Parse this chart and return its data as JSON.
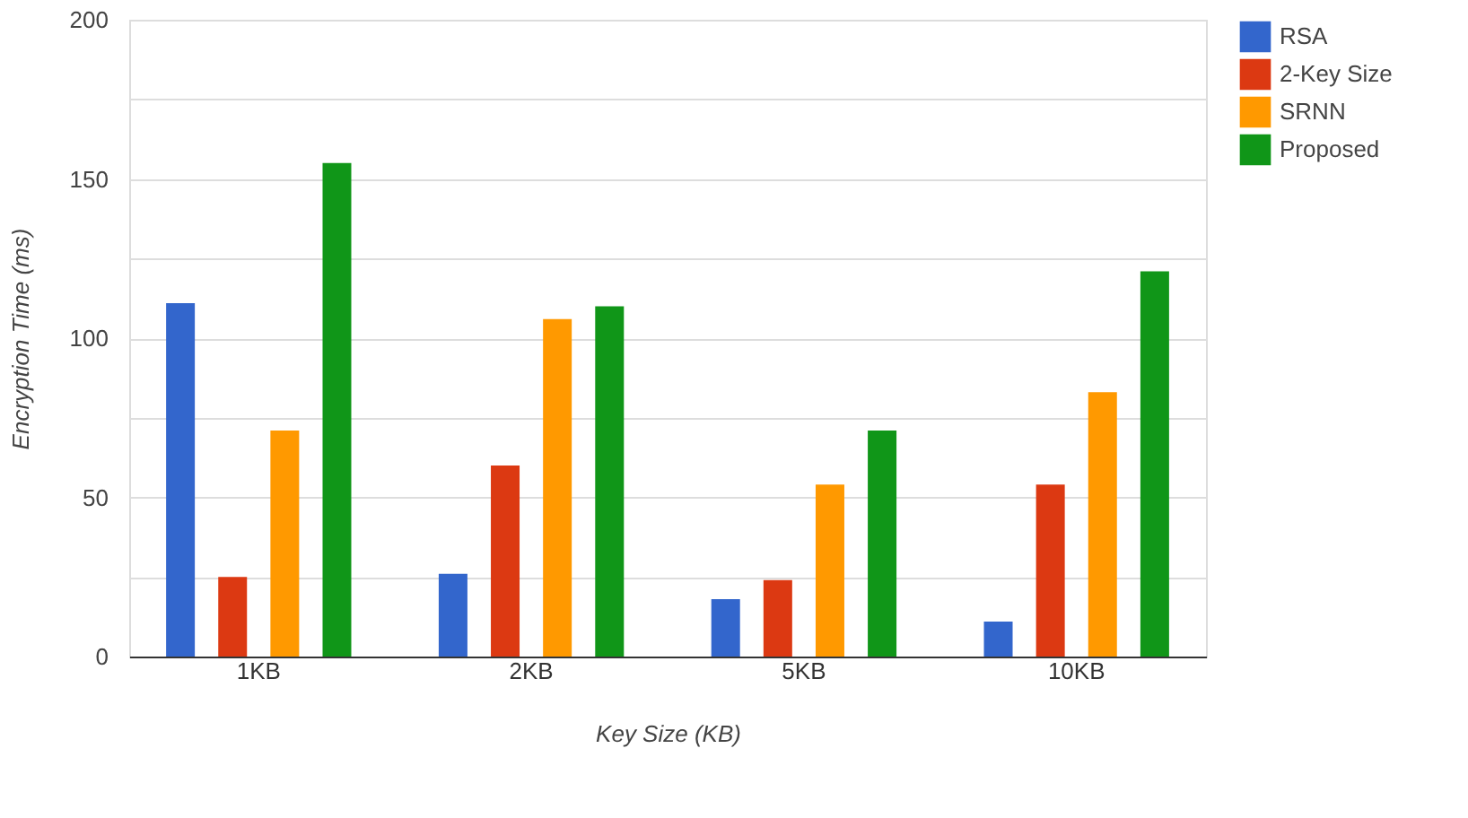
{
  "chart_data": {
    "type": "bar",
    "xlabel": "Key Size (KB)",
    "ylabel": "Encryption Time (ms)",
    "categories": [
      "1KB",
      "2KB",
      "5KB",
      "10KB"
    ],
    "series": [
      {
        "name": "RSA",
        "color": "#3366cc",
        "values": [
          111,
          26,
          18,
          11
        ]
      },
      {
        "name": "2-Key Size",
        "color": "#dc3912",
        "values": [
          25,
          60,
          24,
          54
        ]
      },
      {
        "name": "SRNN",
        "color": "#ff9900",
        "values": [
          71,
          106,
          54,
          83
        ]
      },
      {
        "name": "Proposed",
        "color": "#109618",
        "values": [
          155,
          110,
          71,
          121
        ]
      }
    ],
    "ylim": [
      0,
      200
    ],
    "yticks": [
      0,
      {
        "value": 25,
        "label": null
      },
      50,
      {
        "value": 75,
        "label": null
      },
      100,
      {
        "value": 125,
        "label": null
      },
      150,
      {
        "value": 175,
        "label": null
      },
      200
    ],
    "grid": "y",
    "legend": "top right"
  }
}
